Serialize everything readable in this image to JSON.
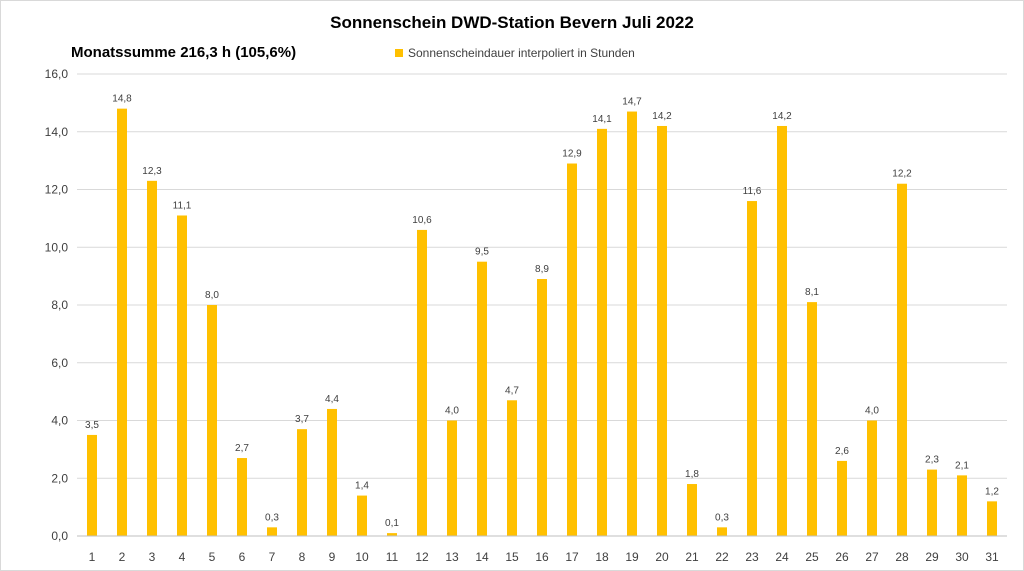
{
  "chart_data": {
    "type": "bar",
    "title": "Sonnenschein  DWD-Station  Bevern Juli 2022",
    "subtitle": "Monatssumme 216,3  h (105,6%)",
    "legend": {
      "placement": "top-center",
      "entries": [
        {
          "label": "Sonnenscheindauer interpoliert in Stunden",
          "color": "#FFC000"
        }
      ]
    },
    "categories": [
      "1",
      "2",
      "3",
      "4",
      "5",
      "6",
      "7",
      "8",
      "9",
      "10",
      "11",
      "12",
      "13",
      "14",
      "15",
      "16",
      "17",
      "18",
      "19",
      "20",
      "21",
      "22",
      "23",
      "24",
      "25",
      "26",
      "27",
      "28",
      "29",
      "30",
      "31"
    ],
    "series": [
      {
        "name": "Sonnenscheindauer interpoliert in Stunden",
        "color": "#FFC000",
        "values": [
          3.5,
          14.8,
          12.3,
          11.1,
          8.0,
          2.7,
          0.3,
          3.7,
          4.4,
          1.4,
          0.1,
          10.6,
          4.0,
          9.5,
          4.7,
          8.9,
          12.9,
          14.1,
          14.7,
          14.2,
          1.8,
          0.3,
          11.6,
          14.2,
          8.1,
          2.6,
          4.0,
          12.2,
          2.3,
          2.1,
          1.2
        ],
        "data_labels": [
          "3,5",
          "14,8",
          "12,3",
          "11,1",
          "8,0",
          "2,7",
          "0,3",
          "3,7",
          "4,4",
          "1,4",
          "0,1",
          "10,6",
          "4,0",
          "9,5",
          "4,7",
          "8,9",
          "12,9",
          "14,1",
          "14,7",
          "14,2",
          "1,8",
          "0,3",
          "11,6",
          "14,2",
          "8,1",
          "2,6",
          "4,0",
          "12,2",
          "2,3",
          "2,1",
          "1,2"
        ]
      }
    ],
    "ylim": [
      0,
      16
    ],
    "yticks": [
      0,
      2,
      4,
      6,
      8,
      10,
      12,
      14,
      16
    ],
    "ytick_labels": [
      "0,0",
      "2,0",
      "4,0",
      "6,0",
      "8,0",
      "10,0",
      "12,0",
      "14,0",
      "16,0"
    ],
    "grid": true,
    "xlabel": "",
    "ylabel": ""
  }
}
